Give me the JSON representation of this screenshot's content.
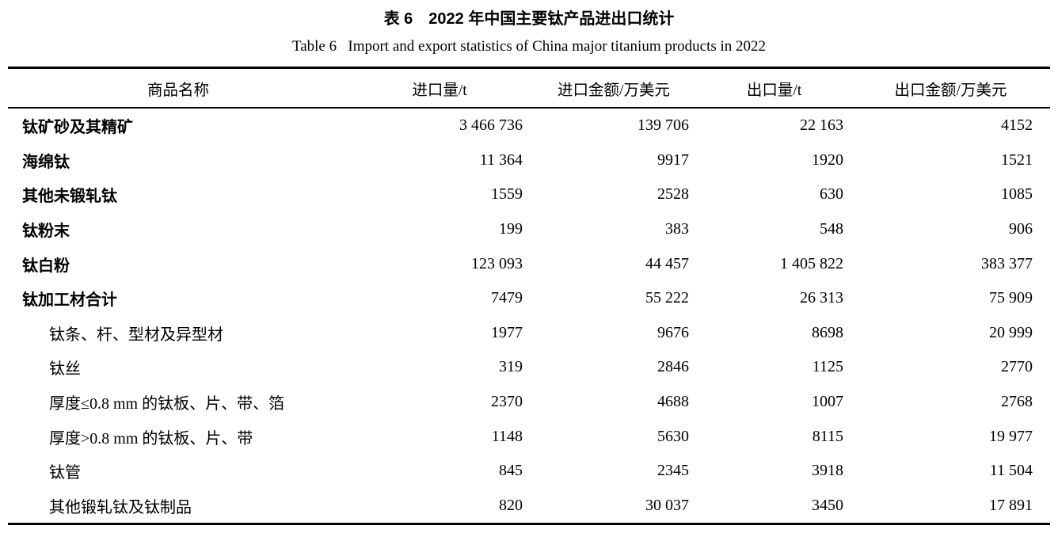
{
  "doc": {
    "title_zh": "表 6　2022 年中国主要钛产品进出口统计",
    "title_en": "Table 6   Import and export statistics of China major titanium products in 2022"
  },
  "table": {
    "headers": {
      "product": "商品名称",
      "import_qty": "进口量/t",
      "import_value": "进口金额/万美元",
      "export_qty": "出口量/t",
      "export_value": "出口金额/万美元"
    },
    "rows": [
      {
        "name": "钛矿砂及其精矿",
        "level": "main",
        "import_qty": "3 466 736",
        "import_value": "139 706",
        "export_qty": "22 163",
        "export_value": "4152"
      },
      {
        "name": "海绵钛",
        "level": "main",
        "import_qty": "11 364",
        "import_value": "9917",
        "export_qty": "1920",
        "export_value": "1521"
      },
      {
        "name": "其他未锻轧钛",
        "level": "main",
        "import_qty": "1559",
        "import_value": "2528",
        "export_qty": "630",
        "export_value": "1085"
      },
      {
        "name": "钛粉末",
        "level": "main",
        "import_qty": "199",
        "import_value": "383",
        "export_qty": "548",
        "export_value": "906"
      },
      {
        "name": "钛白粉",
        "level": "main",
        "import_qty": "123 093",
        "import_value": "44 457",
        "export_qty": "1 405 822",
        "export_value": "383 377"
      },
      {
        "name": "钛加工材合计",
        "level": "main",
        "import_qty": "7479",
        "import_value": "55 222",
        "export_qty": "26 313",
        "export_value": "75 909"
      },
      {
        "name": "钛条、杆、型材及异型材",
        "level": "sub",
        "import_qty": "1977",
        "import_value": "9676",
        "export_qty": "8698",
        "export_value": "20 999"
      },
      {
        "name": "钛丝",
        "level": "sub",
        "import_qty": "319",
        "import_value": "2846",
        "export_qty": "1125",
        "export_value": "2770"
      },
      {
        "name": "厚度≤0.8 mm 的钛板、片、带、箔",
        "level": "sub",
        "import_qty": "2370",
        "import_value": "4688",
        "export_qty": "1007",
        "export_value": "2768"
      },
      {
        "name": "厚度>0.8 mm 的钛板、片、带",
        "level": "sub",
        "import_qty": "1148",
        "import_value": "5630",
        "export_qty": "8115",
        "export_value": "19 977"
      },
      {
        "name": "钛管",
        "level": "sub",
        "import_qty": "845",
        "import_value": "2345",
        "export_qty": "3918",
        "export_value": "11 504"
      },
      {
        "name": "其他锻轧钛及钛制品",
        "level": "sub",
        "import_qty": "820",
        "import_value": "30 037",
        "export_qty": "3450",
        "export_value": "17 891"
      }
    ]
  }
}
